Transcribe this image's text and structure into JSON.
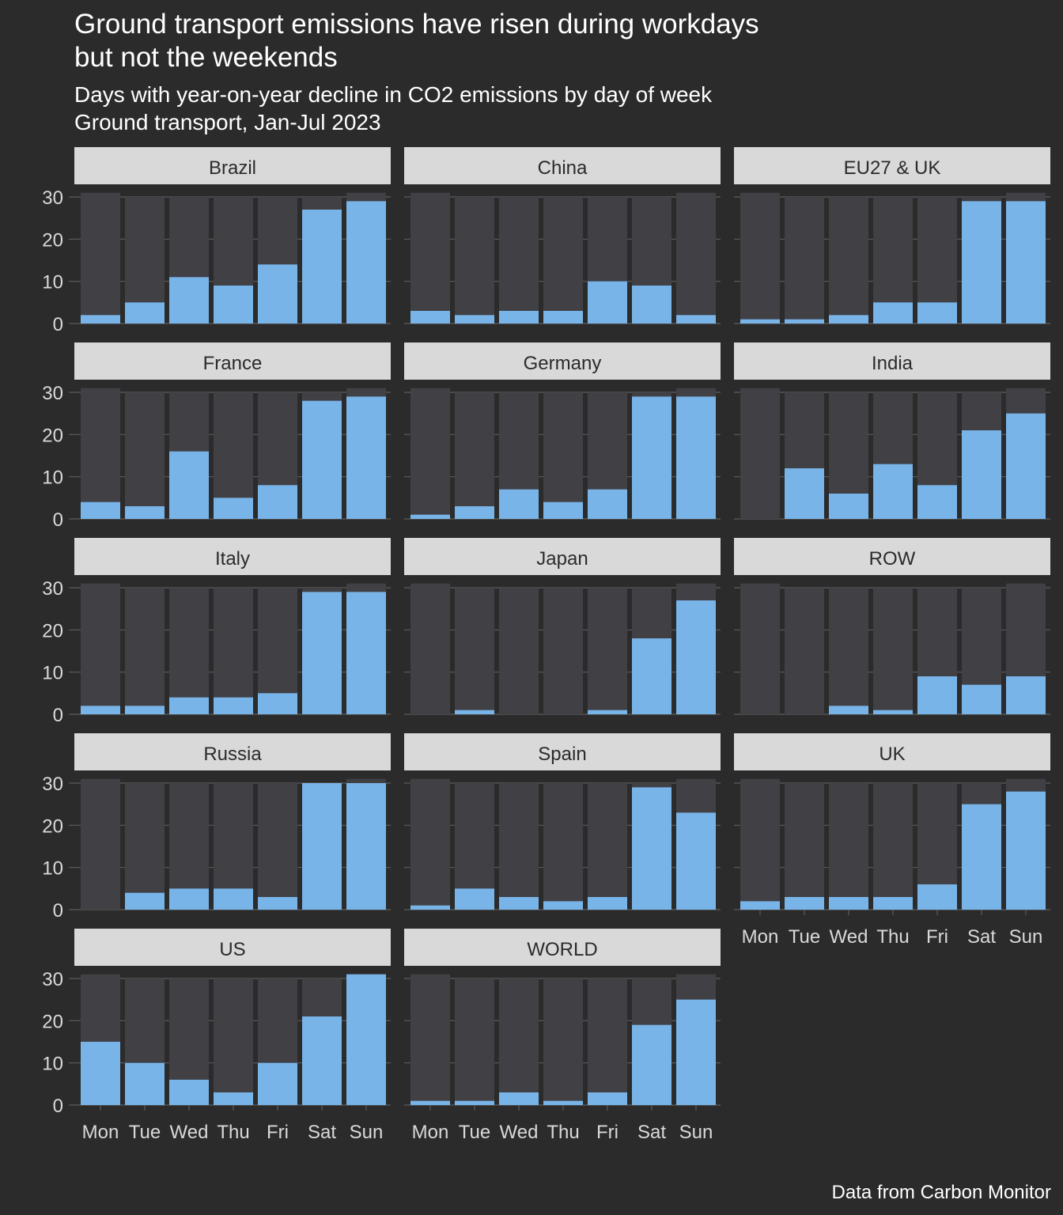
{
  "title": "Ground transport emissions have risen during workdays\nbut not the weekends",
  "subtitle": "Days with year-on-year decline in CO2 emissions by day of week\nGround transport, Jan-Jul 2023",
  "caption": "Data from Carbon Monitor",
  "colors": {
    "background": "#2b2b2b",
    "strip": "#d9d9d9",
    "strip_text": "#2b2b2b",
    "total_bar": "#404045",
    "decline_bar": "#78b4e8",
    "grid": "#5c5c5c",
    "axis_text": "#d9d9d9"
  },
  "chart_data": {
    "type": "bar",
    "facet_wrap": "country",
    "categories": [
      "Mon",
      "Tue",
      "Wed",
      "Thu",
      "Fri",
      "Sat",
      "Sun"
    ],
    "y_ticks": [
      0,
      10,
      20,
      30
    ],
    "ylim": [
      0,
      31
    ],
    "total_days": [
      31,
      30,
      30,
      30,
      30,
      30,
      31
    ],
    "panels": [
      {
        "name": "Brazil",
        "values": [
          2,
          5,
          11,
          9,
          14,
          27,
          29
        ]
      },
      {
        "name": "China",
        "values": [
          3,
          2,
          3,
          3,
          10,
          9,
          2
        ]
      },
      {
        "name": "EU27 & UK",
        "values": [
          1,
          1,
          2,
          5,
          5,
          29,
          29
        ]
      },
      {
        "name": "France",
        "values": [
          4,
          3,
          16,
          5,
          8,
          28,
          29
        ]
      },
      {
        "name": "Germany",
        "values": [
          1,
          3,
          7,
          4,
          7,
          29,
          29
        ]
      },
      {
        "name": "India",
        "values": [
          0,
          12,
          6,
          13,
          8,
          21,
          25
        ]
      },
      {
        "name": "Italy",
        "values": [
          2,
          2,
          4,
          4,
          5,
          29,
          29
        ]
      },
      {
        "name": "Japan",
        "values": [
          0,
          1,
          0,
          0,
          1,
          18,
          27
        ]
      },
      {
        "name": "ROW",
        "values": [
          0,
          0,
          2,
          1,
          9,
          7,
          9
        ]
      },
      {
        "name": "Russia",
        "values": [
          0,
          4,
          5,
          5,
          3,
          30,
          30
        ]
      },
      {
        "name": "Spain",
        "values": [
          1,
          5,
          3,
          2,
          3,
          29,
          23
        ]
      },
      {
        "name": "UK",
        "values": [
          2,
          3,
          3,
          3,
          6,
          25,
          28
        ]
      },
      {
        "name": "US",
        "values": [
          15,
          10,
          6,
          3,
          10,
          21,
          31
        ]
      },
      {
        "name": "WORLD",
        "values": [
          1,
          1,
          3,
          1,
          3,
          19,
          25
        ]
      }
    ]
  }
}
